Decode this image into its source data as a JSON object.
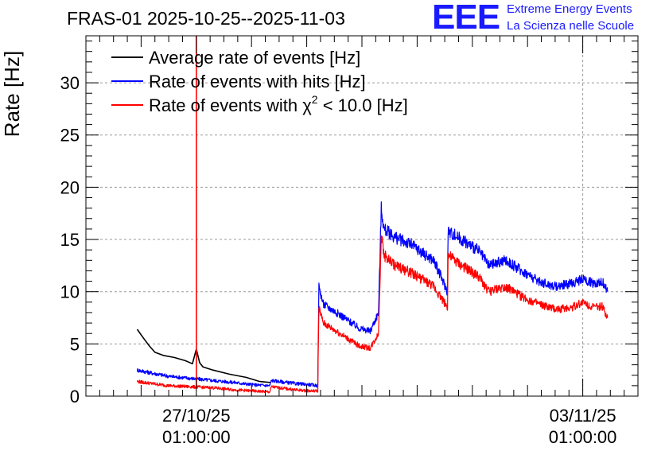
{
  "chart_data": {
    "type": "line",
    "title": "FRAS-01 2025-10-25--2025-11-03",
    "ylabel": "Rate [Hz]",
    "xlabel": "",
    "ylim": [
      0,
      34.5
    ],
    "xlim_days": [
      0,
      10
    ],
    "grid": true,
    "yticks": [
      0,
      5,
      10,
      15,
      20,
      25,
      30
    ],
    "xticks": [
      {
        "day": 2.0,
        "date": "27/10/25",
        "time": "01:00:00"
      },
      {
        "day": 9.0,
        "date": "03/11/25",
        "time": "01:00:00"
      }
    ],
    "legend": {
      "placement": "top-left",
      "entries": [
        {
          "label": "Average rate of events [Hz]",
          "color": "#000000"
        },
        {
          "label": "Rate of events with hits [Hz]",
          "color": "#0000ff"
        },
        {
          "label_prefix": "Rate of events with ",
          "label_symbol": "χ",
          "label_sup": "2",
          "label_suffix": " < 10.0 [Hz]",
          "color": "#ff0000"
        }
      ]
    },
    "series": [
      {
        "name": "Average rate of events [Hz]",
        "color": "#000000",
        "x": [
          0.93,
          1.05,
          1.15,
          1.25,
          1.4,
          1.6,
          1.8,
          1.93,
          2.0,
          2.06,
          2.12,
          2.3,
          2.6,
          2.9,
          3.15,
          3.35
        ],
        "y": [
          6.4,
          5.5,
          4.8,
          4.2,
          3.9,
          3.7,
          3.4,
          3.1,
          4.5,
          3.2,
          2.8,
          2.5,
          2.1,
          1.8,
          1.4,
          1.3
        ]
      },
      {
        "name": "Rate of events with hits [Hz]",
        "color": "#0000ff",
        "noise": 0.5,
        "x": [
          0.93,
          1.2,
          1.5,
          1.9,
          2.3,
          2.7,
          3.0,
          3.33,
          3.36,
          3.5,
          3.8,
          4.05,
          4.2,
          4.22,
          4.3,
          4.6,
          4.95,
          5.15,
          5.3,
          5.35,
          5.4,
          5.6,
          5.9,
          6.15,
          6.3,
          6.55,
          6.56,
          6.8,
          7.1,
          7.3,
          7.6,
          7.9,
          8.2,
          8.5,
          8.8,
          9.0,
          9.2,
          9.35,
          9.45
        ],
        "y": [
          2.5,
          2.2,
          1.9,
          1.7,
          1.5,
          1.3,
          1.1,
          1.0,
          1.5,
          1.4,
          1.2,
          1.1,
          1.0,
          10.5,
          8.8,
          7.8,
          6.5,
          6.2,
          8.0,
          18.0,
          16.0,
          15.2,
          14.5,
          13.5,
          13.0,
          10.0,
          15.8,
          15.0,
          14.0,
          12.5,
          13.0,
          12.0,
          11.0,
          10.5,
          10.8,
          11.2,
          10.8,
          11.0,
          10.0
        ]
      },
      {
        "name": "Rate of events with χ2 < 10.0 [Hz]",
        "color": "#ff0000",
        "noise": 0.5,
        "x": [
          0.93,
          1.2,
          1.5,
          1.9,
          2.3,
          2.7,
          3.0,
          3.33,
          3.36,
          3.5,
          3.8,
          4.05,
          4.2,
          4.22,
          4.3,
          4.6,
          4.95,
          5.15,
          5.3,
          5.35,
          5.4,
          5.6,
          5.9,
          6.15,
          6.3,
          6.55,
          6.56,
          6.8,
          7.1,
          7.3,
          7.6,
          7.9,
          8.2,
          8.5,
          8.8,
          9.0,
          9.2,
          9.35,
          9.45
        ],
        "y": [
          1.4,
          1.2,
          1.0,
          0.9,
          0.8,
          0.6,
          0.5,
          0.4,
          0.9,
          0.8,
          0.6,
          0.5,
          0.5,
          8.5,
          7.0,
          6.0,
          4.8,
          4.6,
          6.0,
          15.5,
          13.5,
          12.5,
          11.8,
          11.0,
          10.5,
          8.5,
          13.5,
          12.5,
          11.5,
          10.0,
          10.5,
          9.5,
          8.8,
          8.3,
          8.5,
          9.0,
          8.5,
          8.6,
          7.5
        ]
      },
      {
        "name": "spike",
        "color": "#ff0000",
        "x": [
          2.0,
          2.0
        ],
        "y": [
          0.8,
          34.5
        ]
      }
    ]
  },
  "header": {
    "title": "FRAS-01 2025-10-25--2025-11-03",
    "logo": "EEE",
    "org_line1": "Extreme Energy Events",
    "org_line2": "La Scienza nelle Scuole"
  }
}
